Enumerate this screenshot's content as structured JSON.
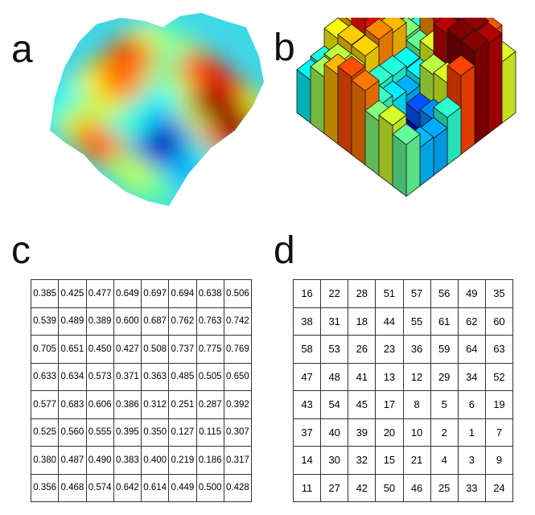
{
  "panels": {
    "a": {
      "letter": "a"
    },
    "b": {
      "letter": "b"
    },
    "c": {
      "letter": "c"
    },
    "d": {
      "letter": "d"
    }
  },
  "table_c": [
    [
      "0.385",
      "0.425",
      "0.477",
      "0.649",
      "0.697",
      "0.694",
      "0.638",
      "0.506"
    ],
    [
      "0.539",
      "0.489",
      "0.389",
      "0.600",
      "0.687",
      "0.762",
      "0.763",
      "0.742"
    ],
    [
      "0.705",
      "0.651",
      "0.450",
      "0.427",
      "0.508",
      "0.737",
      "0.775",
      "0.769"
    ],
    [
      "0.633",
      "0.634",
      "0.573",
      "0.371",
      "0.363",
      "0.485",
      "0.505",
      "0.650"
    ],
    [
      "0.577",
      "0.683",
      "0.606",
      "0.386",
      "0.312",
      "0.251",
      "0.287",
      "0.392"
    ],
    [
      "0.525",
      "0.560",
      "0.555",
      "0.395",
      "0.350",
      "0.127",
      "0.115",
      "0.307"
    ],
    [
      "0.380",
      "0.487",
      "0.490",
      "0.383",
      "0.400",
      "0.219",
      "0.186",
      "0.317"
    ],
    [
      "0.356",
      "0.468",
      "0.574",
      "0.642",
      "0.614",
      "0.449",
      "0.500",
      "0.428"
    ]
  ],
  "table_d": [
    [
      "16",
      "22",
      "28",
      "51",
      "57",
      "56",
      "49",
      "35"
    ],
    [
      "38",
      "31",
      "18",
      "44",
      "55",
      "61",
      "62",
      "60"
    ],
    [
      "58",
      "53",
      "26",
      "23",
      "36",
      "59",
      "64",
      "63"
    ],
    [
      "47",
      "48",
      "41",
      "13",
      "12",
      "29",
      "34",
      "52"
    ],
    [
      "43",
      "54",
      "45",
      "17",
      "8",
      "5",
      "6",
      "19"
    ],
    [
      "37",
      "40",
      "39",
      "20",
      "10",
      "2",
      "1",
      "7"
    ],
    [
      "14",
      "30",
      "32",
      "15",
      "21",
      "4",
      "3",
      "9"
    ],
    [
      "11",
      "27",
      "42",
      "50",
      "46",
      "25",
      "33",
      "24"
    ]
  ],
  "colormap": "jet"
}
